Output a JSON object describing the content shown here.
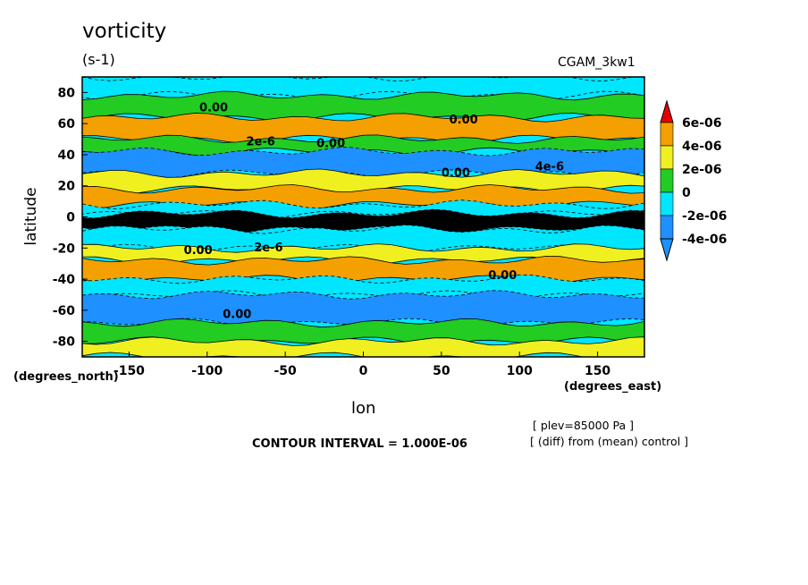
{
  "header": {
    "title": "vorticity",
    "units": "(s-1)",
    "model": "CGAM_3kw1"
  },
  "axes": {
    "xlabel": "lon",
    "ylabel": "latitude",
    "x_units": "(degrees_east)",
    "y_units": "(degrees_north)"
  },
  "footer": {
    "contour_interval": "CONTOUR INTERVAL = 1.000E-06",
    "note_level": "[ plev=85000 Pa ]",
    "note_diff": "[ (diff) from (mean) control ]"
  },
  "chart_data": {
    "type": "heatmap",
    "title": "vorticity",
    "xlabel": "lon",
    "ylabel": "latitude",
    "xlim": [
      -180,
      180
    ],
    "ylim": [
      -90,
      90
    ],
    "x_ticks": [
      -150,
      -100,
      -50,
      0,
      50,
      100,
      150
    ],
    "y_ticks": [
      80,
      60,
      40,
      20,
      0,
      -20,
      -40,
      -60,
      -80
    ],
    "grid": false,
    "colorbar": {
      "placement": "right",
      "levels": [
        "6e-06",
        "4e-06",
        "2e-06",
        "0",
        "-2e-06",
        "-4e-06"
      ],
      "colors": [
        "#e60000",
        "#f4a000",
        "#f0f020",
        "#22cc22",
        "#00e6ff",
        "#1e90ff",
        "#2020e0",
        "#000000"
      ]
    },
    "contour_labels": [
      "0.00",
      "2e-6",
      "0.00",
      "0.00",
      "0.00",
      "4e-6",
      "2e-6",
      "0.00",
      "0.00",
      "0.00"
    ],
    "bands_lat": [
      {
        "lat": [
          90,
          78
        ],
        "value": -1e-06
      },
      {
        "lat": [
          78,
          64
        ],
        "value": 1e-06
      },
      {
        "lat": [
          64,
          50
        ],
        "value": 4e-06
      },
      {
        "lat": [
          50,
          42
        ],
        "value": 1e-06
      },
      {
        "lat": [
          42,
          28
        ],
        "value": -4e-06
      },
      {
        "lat": [
          28,
          18
        ],
        "value": 3e-06
      },
      {
        "lat": [
          18,
          8
        ],
        "value": 5e-06
      },
      {
        "lat": [
          8,
          2
        ],
        "value": -2e-06
      },
      {
        "lat": [
          2,
          -8
        ],
        "value": -8e-06
      },
      {
        "lat": [
          -8,
          -20
        ],
        "value": -1e-06
      },
      {
        "lat": [
          -20,
          -28
        ],
        "value": 2e-06
      },
      {
        "lat": [
          -28,
          -40
        ],
        "value": 5e-06
      },
      {
        "lat": [
          -40,
          -50
        ],
        "value": -1e-06
      },
      {
        "lat": [
          -50,
          -68
        ],
        "value": -3e-06
      },
      {
        "lat": [
          -68,
          -80
        ],
        "value": 1e-06
      },
      {
        "lat": [
          -80,
          -90
        ],
        "value": 3e-06
      }
    ]
  }
}
